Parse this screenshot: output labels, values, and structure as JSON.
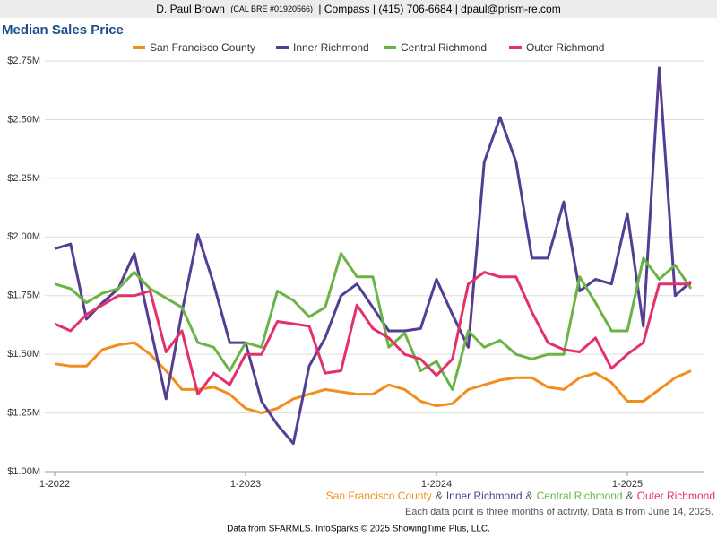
{
  "header": {
    "name": "D. Paul Brown",
    "license": "(CAL BRE #01920566)",
    "contact": "| Compass | (415) 706-6684 | dpaul@prism-re.com"
  },
  "chart_data": {
    "type": "line",
    "title": "Median Sales Price",
    "categories": [
      "1-2022",
      null,
      null,
      null,
      null,
      null,
      null,
      null,
      null,
      null,
      null,
      null,
      "1-2023",
      null,
      null,
      null,
      null,
      null,
      null,
      null,
      null,
      null,
      null,
      null,
      "1-2024",
      null,
      null,
      null,
      null,
      null,
      null,
      null,
      null,
      null,
      null,
      null,
      "1-2025",
      null,
      null,
      null,
      null
    ],
    "series": [
      {
        "name": "San Francisco County",
        "color": "#f28e1e",
        "values": [
          1.46,
          1.45,
          1.45,
          1.52,
          1.54,
          1.55,
          1.5,
          1.43,
          1.35,
          1.35,
          1.36,
          1.33,
          1.27,
          1.25,
          1.27,
          1.31,
          1.33,
          1.35,
          1.34,
          1.33,
          1.33,
          1.37,
          1.35,
          1.3,
          1.28,
          1.29,
          1.35,
          1.37,
          1.39,
          1.4,
          1.4,
          1.36,
          1.35,
          1.4,
          1.42,
          1.38,
          1.3,
          1.3,
          1.35,
          1.4,
          1.43
        ]
      },
      {
        "name": "Inner Richmond",
        "color": "#553d94",
        "values": [
          1.95,
          1.97,
          1.65,
          1.72,
          1.78,
          1.93,
          1.62,
          1.31,
          1.68,
          2.01,
          1.8,
          1.55,
          1.55,
          1.3,
          1.2,
          1.12,
          1.45,
          1.57,
          1.75,
          1.8,
          1.7,
          1.6,
          1.6,
          1.61,
          1.82,
          1.67,
          1.53,
          2.32,
          2.51,
          2.32,
          1.91,
          1.91,
          2.15,
          1.77,
          1.82,
          1.8,
          2.1,
          1.62,
          2.72,
          1.75,
          1.81
        ]
      },
      {
        "name": "Central Richmond",
        "color": "#6ab446",
        "values": [
          1.8,
          1.78,
          1.72,
          1.76,
          1.78,
          1.85,
          1.78,
          1.74,
          1.7,
          1.55,
          1.53,
          1.43,
          1.55,
          1.53,
          1.77,
          1.73,
          1.66,
          1.7,
          1.93,
          1.83,
          1.83,
          1.53,
          1.59,
          1.43,
          1.47,
          1.35,
          1.6,
          1.53,
          1.56,
          1.5,
          1.48,
          1.5,
          1.5,
          1.83,
          1.72,
          1.6,
          1.6,
          1.91,
          1.82,
          1.88,
          1.78
        ]
      },
      {
        "name": "Outer Richmond",
        "color": "#e4306b",
        "values": [
          1.63,
          1.6,
          1.67,
          1.71,
          1.75,
          1.75,
          1.77,
          1.51,
          1.6,
          1.33,
          1.42,
          1.37,
          1.5,
          1.5,
          1.64,
          1.63,
          1.62,
          1.42,
          1.43,
          1.71,
          1.61,
          1.57,
          1.5,
          1.48,
          1.41,
          1.48,
          1.8,
          1.85,
          1.83,
          1.83,
          1.68,
          1.55,
          1.52,
          1.51,
          1.57,
          1.44,
          1.5,
          1.55,
          1.8,
          1.8,
          1.8
        ]
      }
    ],
    "ylim": [
      1,
      2.8
    ],
    "yticks": [
      {
        "value": 1,
        "label": "$1.00M"
      },
      {
        "value": 1.25,
        "label": "$1.25M"
      },
      {
        "value": 1.5,
        "label": "$1.50M"
      },
      {
        "value": 1.75,
        "label": "$1.75M"
      },
      {
        "value": 2,
        "label": "$2.00M"
      },
      {
        "value": 2.25,
        "label": "$2.25M"
      },
      {
        "value": 2.5,
        "label": "$2.50M"
      },
      {
        "value": 2.75,
        "label": "$2.75M"
      }
    ],
    "grid": true,
    "legend": "top",
    "separator": "&",
    "note": "Each data point is three months of activity. Data is from June 14, 2025."
  },
  "footer": "Data from SFARMLS. InfoSparks © 2025 ShowingTime Plus, LLC."
}
